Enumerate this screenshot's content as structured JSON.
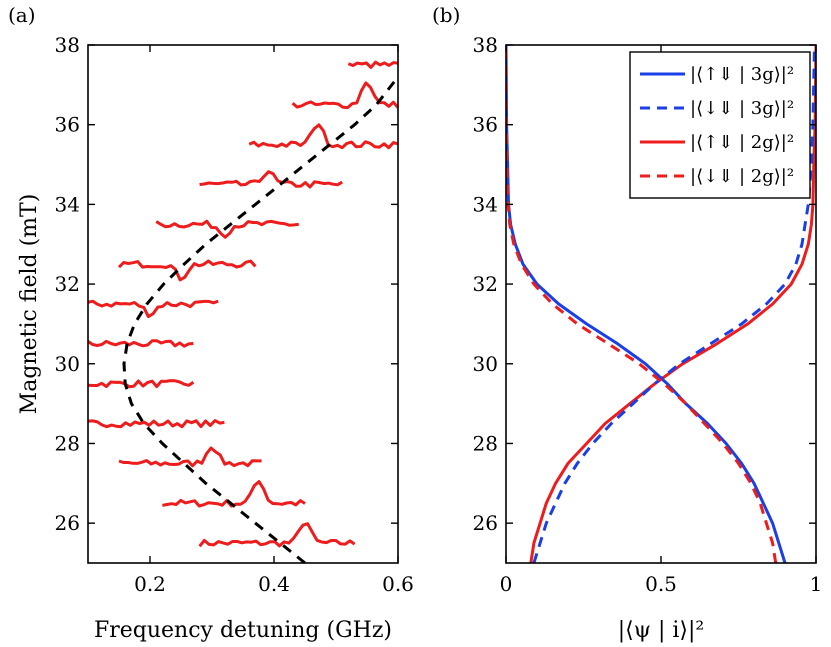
{
  "figure": {
    "panel_a_label": "(a)",
    "panel_b_label": "(b)"
  },
  "colors": {
    "red": "#ee1c1c",
    "blue": "#1a3fe6",
    "black": "#000000"
  },
  "chart_data": [
    {
      "type": "line",
      "panel": "(a)",
      "xlabel": "Frequency detuning (GHz)",
      "ylabel": "Magnetic field (mT)",
      "xlim": [
        0.1,
        0.6
      ],
      "ylim": [
        25,
        38
      ],
      "xticks": [
        0.2,
        0.4,
        0.6
      ],
      "xtick_labels": [
        "0.2",
        "0.4",
        "0.6"
      ],
      "yticks": [
        26,
        28,
        30,
        32,
        34,
        36,
        38
      ],
      "ytick_labels": [
        "26",
        "28",
        "30",
        "32",
        "34",
        "36",
        "38"
      ],
      "spectra": [
        {
          "field": 25.5,
          "x_start": 0.28,
          "x_end": 0.53,
          "peak_x": 0.45,
          "peak_height": 0.55
        },
        {
          "field": 26.5,
          "x_start": 0.22,
          "x_end": 0.45,
          "peak_x": 0.375,
          "peak_height": 0.6
        },
        {
          "field": 27.5,
          "x_start": 0.15,
          "x_end": 0.38,
          "peak_x": 0.3,
          "peak_height": 0.45
        },
        {
          "field": 28.5,
          "x_start": 0.1,
          "x_end": 0.32,
          "peak_x": null,
          "peak_height": 0
        },
        {
          "field": 29.5,
          "x_start": 0.1,
          "x_end": 0.27,
          "peak_x": null,
          "peak_height": 0
        },
        {
          "field": 30.5,
          "x_start": 0.1,
          "x_end": 0.27,
          "peak_x": null,
          "peak_height": 0
        },
        {
          "field": 31.5,
          "x_start": 0.1,
          "x_end": 0.31,
          "peak_x": 0.2,
          "peak_height": -0.25
        },
        {
          "field": 32.5,
          "x_start": 0.15,
          "x_end": 0.37,
          "peak_x": 0.25,
          "peak_height": -0.35
        },
        {
          "field": 33.5,
          "x_start": 0.21,
          "x_end": 0.44,
          "peak_x": 0.32,
          "peak_height": -0.25
        },
        {
          "field": 34.5,
          "x_start": 0.28,
          "x_end": 0.51,
          "peak_x": 0.39,
          "peak_height": 0.35
        },
        {
          "field": 35.5,
          "x_start": 0.36,
          "x_end": 0.6,
          "peak_x": 0.47,
          "peak_height": 0.55
        },
        {
          "field": 36.5,
          "x_start": 0.43,
          "x_end": 0.6,
          "peak_x": 0.55,
          "peak_height": 0.6
        },
        {
          "field": 37.5,
          "x_start": 0.52,
          "x_end": 0.6,
          "peak_x": null,
          "peak_height": 0
        }
      ],
      "fit_curve": {
        "style": "dashed",
        "color": "black",
        "points": [
          [
            0.45,
            25.0
          ],
          [
            0.41,
            25.5
          ],
          [
            0.37,
            26.0
          ],
          [
            0.33,
            26.5
          ],
          [
            0.29,
            27.0
          ],
          [
            0.255,
            27.5
          ],
          [
            0.22,
            28.0
          ],
          [
            0.19,
            28.5
          ],
          [
            0.17,
            29.0
          ],
          [
            0.16,
            29.5
          ],
          [
            0.158,
            30.0
          ],
          [
            0.163,
            30.5
          ],
          [
            0.175,
            31.0
          ],
          [
            0.195,
            31.5
          ],
          [
            0.222,
            32.0
          ],
          [
            0.255,
            32.5
          ],
          [
            0.29,
            33.0
          ],
          [
            0.33,
            33.5
          ],
          [
            0.37,
            34.0
          ],
          [
            0.41,
            34.5
          ],
          [
            0.45,
            35.0
          ],
          [
            0.49,
            35.5
          ],
          [
            0.53,
            36.0
          ],
          [
            0.565,
            36.5
          ],
          [
            0.6,
            37.2
          ]
        ]
      }
    },
    {
      "type": "line",
      "panel": "(b)",
      "xlabel": "|⟨ψ | i⟩|²",
      "xlim": [
        0,
        1
      ],
      "ylim": [
        25,
        38
      ],
      "xticks": [
        0,
        0.5,
        1
      ],
      "xtick_labels": [
        "0",
        "0.5",
        "1"
      ],
      "yticks": [
        26,
        28,
        30,
        32,
        34,
        36,
        38
      ],
      "ytick_labels": [
        "26",
        "28",
        "30",
        "32",
        "34",
        "36",
        "38"
      ],
      "legend_position": "top-right",
      "series": [
        {
          "name": "|⟨↑⇓ | 3g⟩|²",
          "color": "blue",
          "style": "solid",
          "points": [
            [
              0.9,
              25.0
            ],
            [
              0.88,
              25.5
            ],
            [
              0.86,
              26.0
            ],
            [
              0.83,
              26.5
            ],
            [
              0.8,
              27.0
            ],
            [
              0.76,
              27.5
            ],
            [
              0.71,
              28.0
            ],
            [
              0.65,
              28.5
            ],
            [
              0.58,
              29.0
            ],
            [
              0.52,
              29.5
            ],
            [
              0.45,
              30.0
            ],
            [
              0.36,
              30.5
            ],
            [
              0.26,
              31.0
            ],
            [
              0.17,
              31.5
            ],
            [
              0.1,
              32.0
            ],
            [
              0.055,
              32.5
            ],
            [
              0.03,
              33.0
            ],
            [
              0.015,
              33.5
            ],
            [
              0.008,
              34.0
            ],
            [
              0.005,
              35.0
            ],
            [
              0.002,
              36.0
            ],
            [
              0.0,
              38.0
            ]
          ]
        },
        {
          "name": "|⟨↓⇓ | 3g⟩|²",
          "color": "blue",
          "style": "dashed",
          "points": [
            [
              0.09,
              25.0
            ],
            [
              0.11,
              25.5
            ],
            [
              0.13,
              26.0
            ],
            [
              0.16,
              26.5
            ],
            [
              0.19,
              27.0
            ],
            [
              0.23,
              27.5
            ],
            [
              0.28,
              28.0
            ],
            [
              0.34,
              28.5
            ],
            [
              0.41,
              29.0
            ],
            [
              0.48,
              29.5
            ],
            [
              0.56,
              30.0
            ],
            [
              0.66,
              30.5
            ],
            [
              0.76,
              31.0
            ],
            [
              0.84,
              31.5
            ],
            [
              0.9,
              32.0
            ],
            [
              0.935,
              32.5
            ],
            [
              0.955,
              33.0
            ],
            [
              0.965,
              33.5
            ],
            [
              0.975,
              34.0
            ],
            [
              0.985,
              35.0
            ],
            [
              0.99,
              36.0
            ],
            [
              0.995,
              38.0
            ]
          ]
        },
        {
          "name": "|⟨↑⇓ | 2g⟩|²",
          "color": "red",
          "style": "solid",
          "points": [
            [
              0.08,
              25.0
            ],
            [
              0.09,
              25.5
            ],
            [
              0.11,
              26.0
            ],
            [
              0.13,
              26.5
            ],
            [
              0.16,
              27.0
            ],
            [
              0.2,
              27.5
            ],
            [
              0.26,
              28.0
            ],
            [
              0.32,
              28.5
            ],
            [
              0.4,
              29.0
            ],
            [
              0.48,
              29.5
            ],
            [
              0.57,
              30.0
            ],
            [
              0.68,
              30.5
            ],
            [
              0.78,
              31.0
            ],
            [
              0.86,
              31.5
            ],
            [
              0.92,
              32.0
            ],
            [
              0.955,
              32.5
            ],
            [
              0.975,
              33.0
            ],
            [
              0.985,
              33.5
            ],
            [
              0.99,
              34.0
            ],
            [
              0.993,
              35.0
            ],
            [
              0.997,
              36.0
            ],
            [
              1.0,
              38.0
            ]
          ]
        },
        {
          "name": "|⟨↓⇓ | 2g⟩|²",
          "color": "red",
          "style": "dashed",
          "points": [
            [
              0.87,
              25.0
            ],
            [
              0.86,
              25.5
            ],
            [
              0.84,
              26.0
            ],
            [
              0.82,
              26.5
            ],
            [
              0.79,
              27.0
            ],
            [
              0.75,
              27.5
            ],
            [
              0.7,
              28.0
            ],
            [
              0.64,
              28.5
            ],
            [
              0.58,
              29.0
            ],
            [
              0.51,
              29.5
            ],
            [
              0.43,
              30.0
            ],
            [
              0.33,
              30.5
            ],
            [
              0.23,
              31.0
            ],
            [
              0.15,
              31.5
            ],
            [
              0.09,
              32.0
            ],
            [
              0.05,
              32.5
            ],
            [
              0.025,
              33.0
            ],
            [
              0.012,
              33.5
            ],
            [
              0.007,
              34.0
            ],
            [
              0.003,
              35.0
            ],
            [
              0.001,
              36.0
            ],
            [
              0.0,
              38.0
            ]
          ]
        }
      ]
    }
  ]
}
